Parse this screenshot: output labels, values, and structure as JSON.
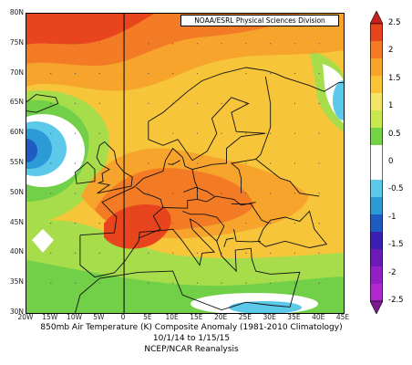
{
  "map": {
    "source_label": "NOAA/ESRL Physical Sciences Division",
    "lat_labels": [
      "80N",
      "75N",
      "70N",
      "65N",
      "60N",
      "55N",
      "50N",
      "45N",
      "40N",
      "35N",
      "30N"
    ],
    "lon_labels": [
      "20W",
      "15W",
      "10W",
      "5W",
      "0",
      "5E",
      "10E",
      "15E",
      "20E",
      "25E",
      "30E",
      "35E",
      "40E",
      "45E"
    ],
    "caption_line1": "850mb Air Temperature (K) Composite Anomaly (1981-2010 Climatology)",
    "caption_line2": "10/1/14  to 1/15/15",
    "caption_line3": "NCEP/NCAR Reanalysis"
  },
  "colorbar": {
    "labels": [
      "2.5",
      "2",
      "1.5",
      "1",
      "0.5",
      "0",
      "-0.5",
      "-1",
      "-1.5",
      "-2",
      "-2.5"
    ],
    "colors": [
      "#c8201c",
      "#e8451e",
      "#f37b25",
      "#f7a42c",
      "#f9c437",
      "#f3e46a",
      "#c9e84f",
      "#73d246",
      "#ffffff",
      "#ffffff",
      "#5cc8ea",
      "#2d9ad8",
      "#1f5cc2",
      "#3b1fb0",
      "#6b1ab8",
      "#9220c4",
      "#b228cf",
      "#7a1a8e"
    ]
  },
  "chart_data": {
    "type": "heatmap",
    "title": "850mb Air Temperature (K) Composite Anomaly (1981-2010 Climatology)",
    "subtitle": "10/1/14  to 1/15/15",
    "source": "NCEP/NCAR Reanalysis",
    "x_range": [
      -20,
      45
    ],
    "y_range": [
      30,
      80
    ],
    "colorbar_range": [
      -2.5,
      2.5
    ],
    "colorbar_ticks": [
      2.5,
      2,
      1.5,
      1,
      0.5,
      0,
      -0.5,
      -1,
      -1.5,
      -2,
      -2.5
    ]
  }
}
